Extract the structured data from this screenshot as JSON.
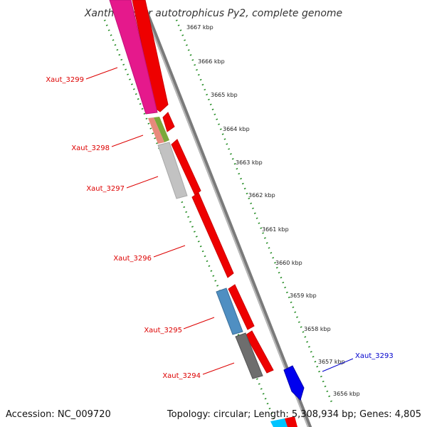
{
  "title": "Xanthobacter autotrophicus Py2, complete genome",
  "footer": {
    "accession": "Accession: NC_009720",
    "summary": "Topology: circular; Length: 5,308,934 bp; Genes: 4,805"
  },
  "colors": {
    "backbone": "#8a8a8a",
    "forward_gene": "#ff0000",
    "magenta_gene": "#e5198c",
    "label_red": "#dd0000",
    "label_blue": "#0000cc",
    "tick_green": "#228b22",
    "blue_gene": "#0000ff",
    "cyan_gene": "#00c4ff"
  },
  "kbp_ticks": [
    "3667 kbp",
    "3666 kbp",
    "3665 kbp",
    "3664 kbp",
    "3663 kbp",
    "3662 kbp",
    "3661 kbp",
    "3660 kbp",
    "3659 kbp",
    "3658 kbp",
    "3657 kbp",
    "3656 kbp"
  ],
  "gene_labels": {
    "xaut_3299": "Xaut_3299",
    "xaut_3298": "Xaut_3298",
    "xaut_3297": "Xaut_3297",
    "xaut_3296": "Xaut_3296",
    "xaut_3295": "Xaut_3295",
    "xaut_3294": "Xaut_3294",
    "xaut_3293": "Xaut_3293"
  }
}
